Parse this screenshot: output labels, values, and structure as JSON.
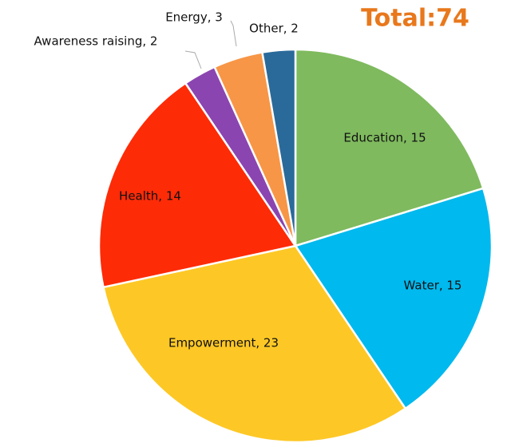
{
  "chart_data": {
    "type": "pie",
    "title": "Total:74",
    "categories": [
      "Education",
      "Water",
      "Empowerment",
      "Health",
      "Awareness raising",
      "Energy",
      "Other"
    ],
    "values": [
      15,
      15,
      23,
      14,
      2,
      3,
      2
    ],
    "value_labels": [
      "Education, 15",
      "Water, 15",
      "Empowerment, 23",
      "Health, 14",
      "Awareness raising, 2",
      "Energy, 3",
      "Other, 2"
    ],
    "colors": [
      "#7fba5e",
      "#00b9ee",
      "#fdc826",
      "#fe2b07",
      "#8b45b0",
      "#f79646",
      "#2a6a9a"
    ]
  }
}
